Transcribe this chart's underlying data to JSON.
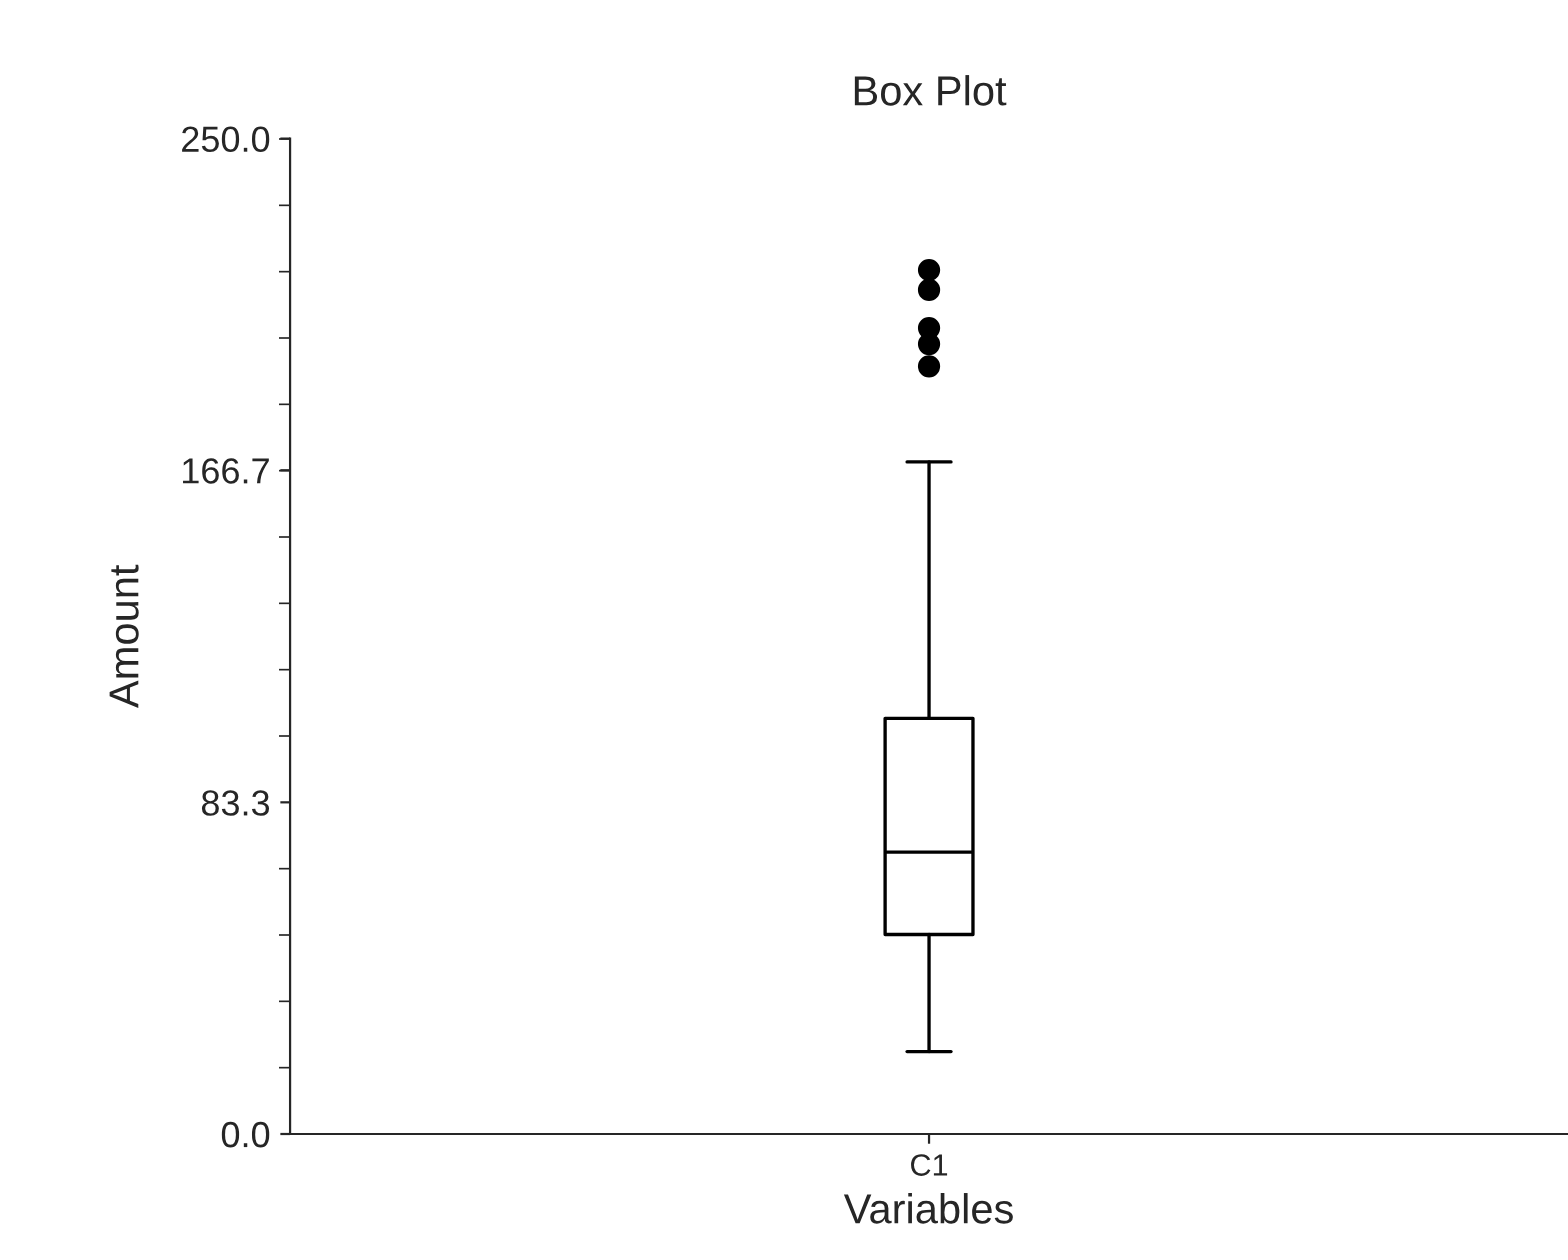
{
  "chart_data": {
    "type": "box",
    "title": "Box Plot",
    "xlabel": "Variables",
    "ylabel": "Amount",
    "categories": [
      "C1"
    ],
    "boxes": [
      {
        "low": 20.7,
        "q1": 50.1,
        "median": 70.8,
        "q3": 104.4,
        "high": 168.8,
        "outliers": [
          192.8,
          198.4,
          202.4,
          212,
          217
        ]
      }
    ],
    "ylim": [
      0,
      250
    ],
    "yticks": [
      {
        "value": 0,
        "label": "0.0"
      },
      {
        "value": 83.3,
        "label": "83.3"
      },
      {
        "value": 166.7,
        "label": "166.7"
      },
      {
        "value": 250,
        "label": "250.0"
      }
    ],
    "grid": false
  }
}
